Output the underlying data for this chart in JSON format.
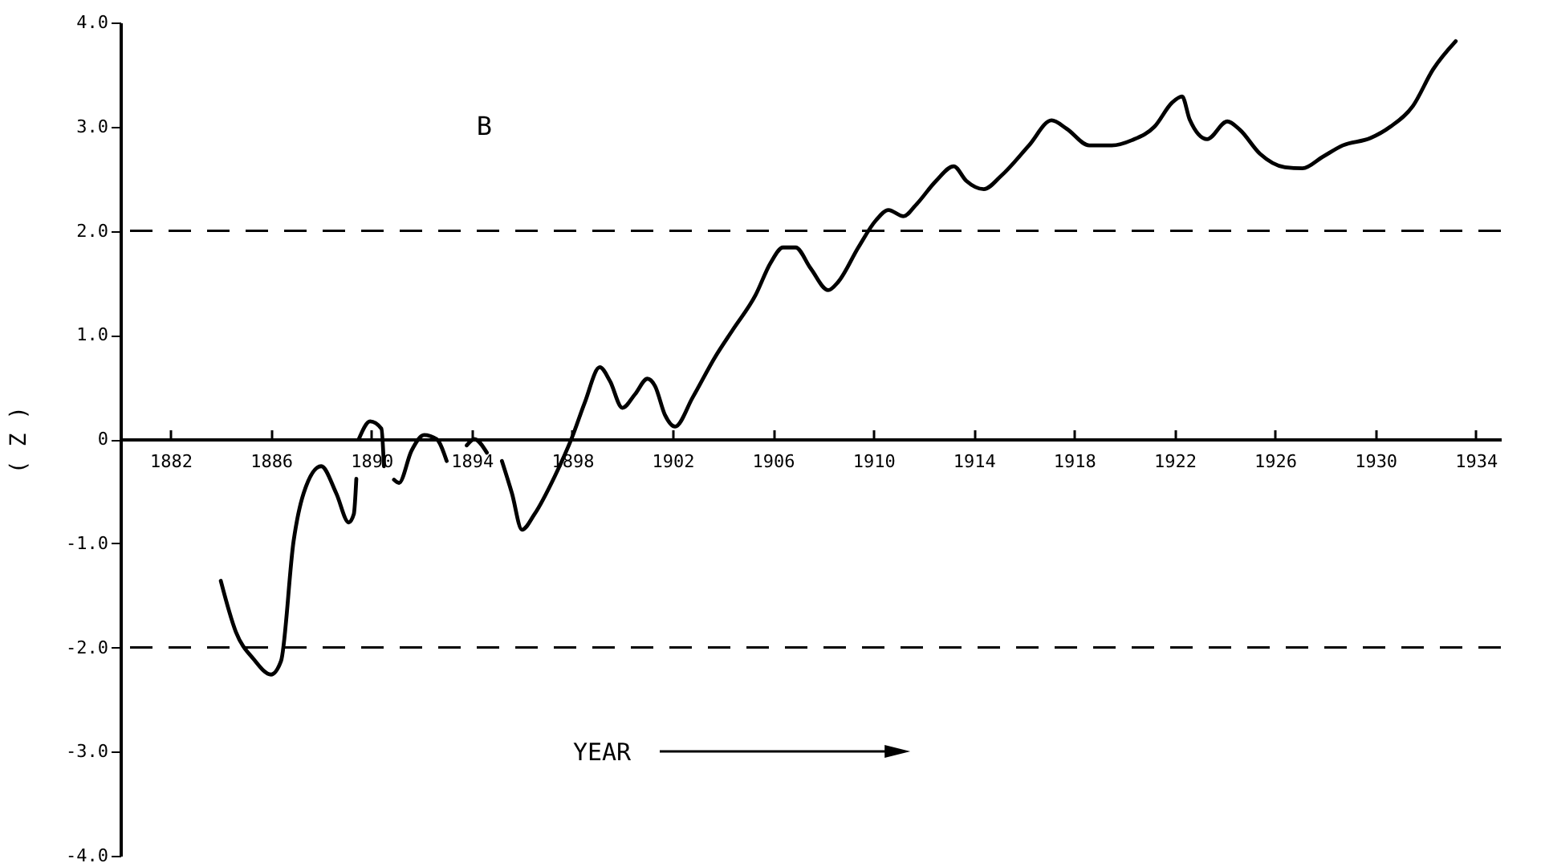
{
  "chart_data": {
    "type": "line",
    "xlabel": "YEAR",
    "ylabel": "( Z )",
    "annotations": [
      "B"
    ],
    "x": [
      1884.0,
      1884.6,
      1885.3,
      1886.0,
      1886.4,
      1886.9,
      1887.3,
      1888.0,
      1888.6,
      1889.1,
      1889.3,
      1889.4,
      1889.45,
      1889.5,
      1889.95,
      1890.4,
      1890.5,
      1890.7,
      1890.9,
      1891.1,
      1891.6,
      1892.1,
      1892.6,
      1893.0,
      1893.4,
      1893.8,
      1894.1,
      1894.6,
      1894.9,
      1895.2,
      1895.6,
      1896.0,
      1896.5,
      1897.3,
      1898.0,
      1898.5,
      1899.1,
      1899.5,
      1900.0,
      1900.5,
      1901.0,
      1901.3,
      1901.7,
      1902.1,
      1902.8,
      1903.7,
      1904.4,
      1905.3,
      1905.9,
      1906.4,
      1906.9,
      1907.5,
      1908.2,
      1908.6,
      1909.4,
      1910.1,
      1910.6,
      1911.2,
      1911.7,
      1912.5,
      1913.2,
      1913.7,
      1914.4,
      1915.1,
      1916.2,
      1917.1,
      1917.7,
      1918.6,
      1919.5,
      1920.3,
      1921.2,
      1921.9,
      1922.3,
      1922.6,
      1923.3,
      1924.1,
      1924.6,
      1925.4,
      1926.4,
      1927.1,
      1927.9,
      1928.7,
      1929.8,
      1930.6,
      1931.5,
      1932.3,
      1933.2
    ],
    "series": [
      {
        "color": "#000000",
        "values": [
          -1.36,
          -1.85,
          -2.11,
          -2.26,
          -2.13,
          -0.98,
          -0.52,
          -0.26,
          -0.52,
          -0.8,
          -0.72,
          -0.38,
          null,
          0.0,
          0.17,
          0.1,
          -0.26,
          null,
          -0.39,
          -0.42,
          -0.11,
          0.04,
          0.0,
          -0.21,
          null,
          -0.06,
          0.0,
          -0.13,
          null,
          -0.21,
          -0.52,
          -0.87,
          -0.72,
          -0.36,
          0.02,
          0.35,
          0.69,
          0.56,
          0.3,
          0.43,
          0.58,
          0.51,
          0.23,
          0.12,
          0.4,
          0.79,
          1.05,
          1.38,
          1.69,
          1.84,
          1.84,
          1.64,
          1.43,
          1.51,
          1.84,
          2.1,
          2.2,
          2.14,
          2.25,
          2.48,
          2.62,
          2.48,
          2.4,
          2.53,
          2.82,
          3.06,
          2.98,
          2.82,
          2.82,
          2.87,
          3.0,
          3.23,
          3.29,
          3.07,
          2.88,
          3.05,
          2.97,
          2.74,
          2.61,
          2.6,
          2.71,
          2.82,
          2.89,
          3.0,
          3.2,
          3.55,
          3.82
        ]
      }
    ],
    "xlim": [
      1880,
      1935
    ],
    "ylim": [
      -4,
      4
    ],
    "xticks": [
      1882,
      1886,
      1890,
      1894,
      1898,
      1902,
      1906,
      1910,
      1914,
      1918,
      1922,
      1926,
      1930,
      1934
    ],
    "yticks": [
      {
        "value": 4,
        "label": "4.0"
      },
      {
        "value": 3,
        "label": "3.0"
      },
      {
        "value": 2,
        "label": "2.0"
      },
      {
        "value": 1,
        "label": "1.0"
      },
      0,
      {
        "value": -1,
        "label": "-1.0"
      },
      {
        "value": -2,
        "label": "-2.0"
      },
      {
        "value": -3,
        "label": "-3.0"
      },
      {
        "value": -4,
        "label": "-4.0"
      }
    ],
    "ref_lines": [
      {
        "axis": "y",
        "value": 2,
        "color": "#000000",
        "line_style": "dashed"
      },
      {
        "axis": "y",
        "value": -2,
        "color": "#000000",
        "line_style": "dashed"
      }
    ],
    "grid": false,
    "marker": "none",
    "line_style": "solid"
  }
}
